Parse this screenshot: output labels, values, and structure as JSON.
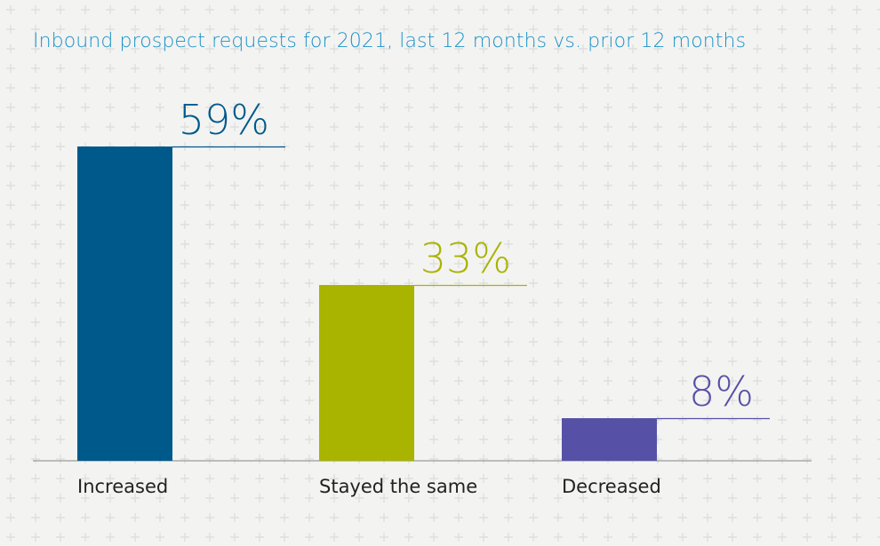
{
  "chart_data": {
    "type": "bar",
    "title": "Inbound prospect requests for 2021, last 12 months vs. prior 12 months",
    "categories": [
      "Increased",
      "Stayed the same",
      "Decreased"
    ],
    "values": [
      59,
      33,
      8
    ],
    "value_labels": [
      "59%",
      "33%",
      "8%"
    ],
    "colors": [
      "#00598b",
      "#a9b400",
      "#5651a6"
    ],
    "ylim": [
      0,
      100
    ],
    "xlabel": "",
    "ylabel": "",
    "grid": false,
    "legend": "none"
  }
}
